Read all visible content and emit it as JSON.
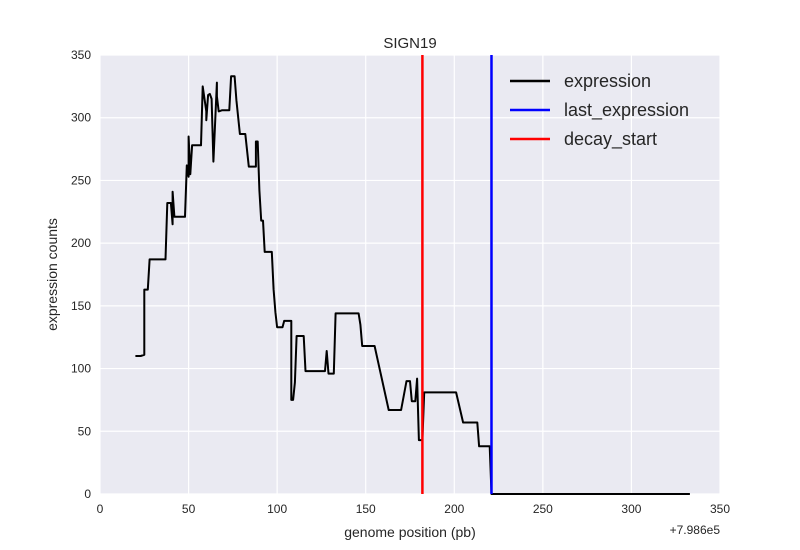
{
  "chart_data": {
    "type": "line",
    "title": "SIGN19",
    "xlabel": "genome position (pb)",
    "ylabel": "expression counts",
    "x_offset_label": "+7.986e5",
    "xlim": [
      0,
      350
    ],
    "ylim": [
      0,
      350
    ],
    "xticks": [
      0,
      50,
      100,
      150,
      200,
      250,
      300,
      350
    ],
    "yticks": [
      0,
      50,
      100,
      150,
      200,
      250,
      300,
      350
    ],
    "grid": true,
    "background": "#EAEAF2",
    "legend_position": "top-right",
    "series": [
      {
        "name": "expression",
        "color": "#000000",
        "x": [
          20,
          23,
          25,
          25,
          27,
          28,
          35,
          37,
          38,
          40,
          41,
          41,
          42,
          43,
          48,
          49,
          50,
          50,
          51,
          52,
          53,
          54,
          57,
          58,
          60,
          60,
          61,
          62,
          63,
          64,
          66,
          66,
          67,
          69,
          73,
          74,
          76,
          77,
          79,
          80,
          82,
          84,
          86,
          88,
          88,
          89,
          90,
          91,
          92,
          93,
          94,
          97,
          98,
          99,
          100,
          102,
          103,
          104,
          108,
          108,
          109,
          110,
          111,
          112,
          115,
          116,
          117,
          118,
          120,
          127,
          128,
          129,
          130,
          131,
          132,
          133,
          134,
          145,
          146,
          147,
          148,
          153,
          154,
          155,
          163,
          164,
          167,
          168,
          170,
          173,
          174,
          175,
          176,
          177,
          178,
          179,
          180,
          181,
          182,
          183,
          187,
          188,
          190,
          192,
          200,
          201,
          205,
          206,
          213,
          214,
          215,
          219,
          220,
          221,
          222,
          333
        ],
        "values": [
          110,
          110,
          111,
          163,
          163,
          187,
          187,
          187,
          232,
          232,
          215,
          241,
          221,
          221,
          221,
          262,
          253,
          285,
          255,
          278,
          278,
          278,
          278,
          325,
          305,
          298,
          318,
          319,
          315,
          265,
          328,
          317,
          305,
          306,
          306,
          333,
          333,
          314,
          287,
          287,
          287,
          261,
          261,
          261,
          281,
          281,
          242,
          218,
          218,
          193,
          193,
          193,
          163,
          145,
          133,
          133,
          133,
          138,
          138,
          75,
          75,
          89,
          126,
          126,
          126,
          98,
          98,
          98,
          98,
          98,
          114,
          96,
          96,
          96,
          96,
          144,
          144,
          144,
          144,
          135,
          118,
          118,
          118,
          118,
          67,
          67,
          67,
          67,
          67,
          90,
          90,
          90,
          74,
          74,
          74,
          92,
          43,
          43,
          43,
          81,
          81,
          81,
          81,
          81,
          81,
          81,
          57,
          57,
          57,
          38,
          38,
          38,
          38,
          0,
          0,
          0
        ]
      },
      {
        "name": "last_expression",
        "color": "#0000FF",
        "type": "vline",
        "x": 221
      },
      {
        "name": "decay_start",
        "color": "#FF0000",
        "type": "vline",
        "x": 182
      }
    ]
  }
}
